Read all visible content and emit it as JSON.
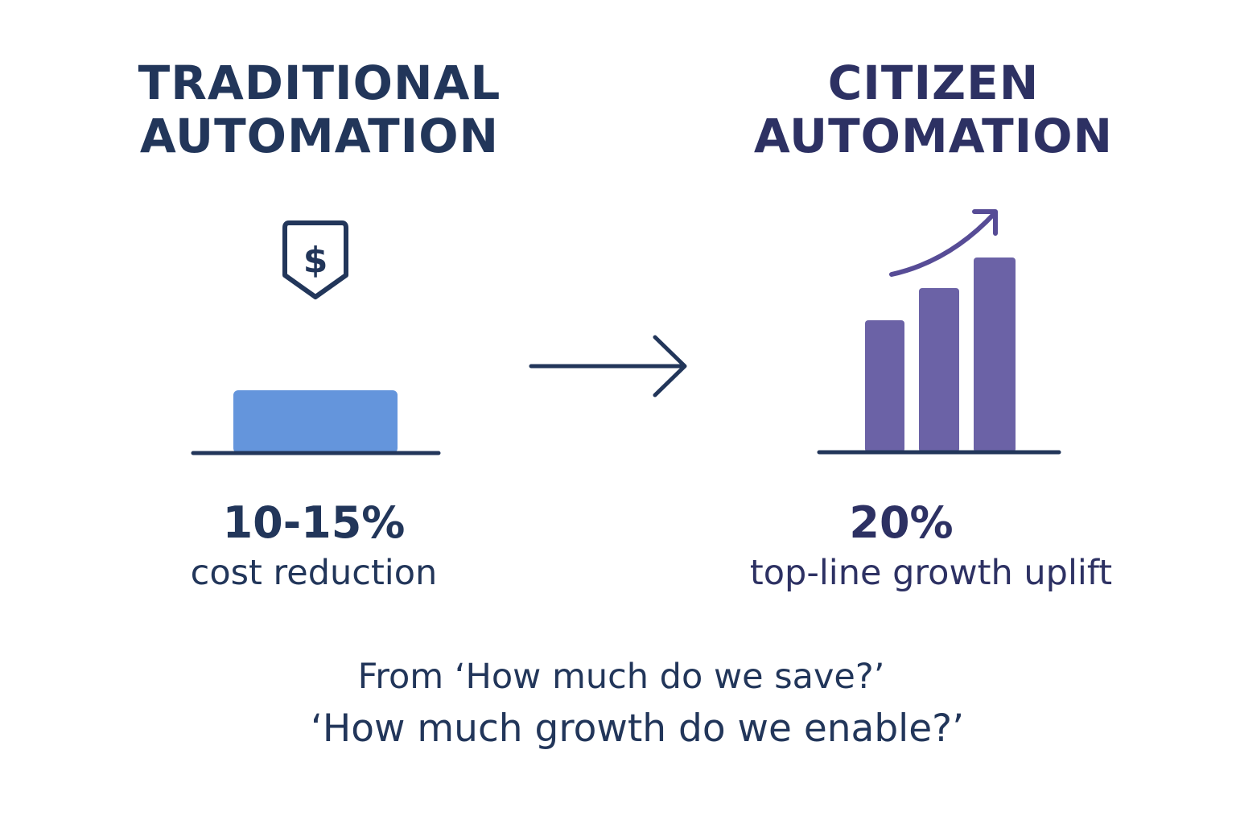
{
  "colors": {
    "navy": "#22365a",
    "indigo": "#2d3163",
    "blue_bar": "#6495dc",
    "purple_bar": "#6b62a6",
    "purple_arrow": "#574c96"
  },
  "left": {
    "title_line1": "TRADITIONAL",
    "title_line2": "AUTOMATION",
    "icon": "dollar-shield-icon",
    "stat": "10-15%",
    "description": "cost reduction"
  },
  "transition_icon": "arrow-right-icon",
  "right": {
    "title_line1": "CITIZEN",
    "title_line2": "AUTOMATION",
    "icon": "growth-bar-chart-icon",
    "stat": "20%",
    "description": "top-line growth uplift"
  },
  "footer": {
    "line1": "From ‘How much do we save?’",
    "line2": "‘How much growth do we enable?’"
  }
}
